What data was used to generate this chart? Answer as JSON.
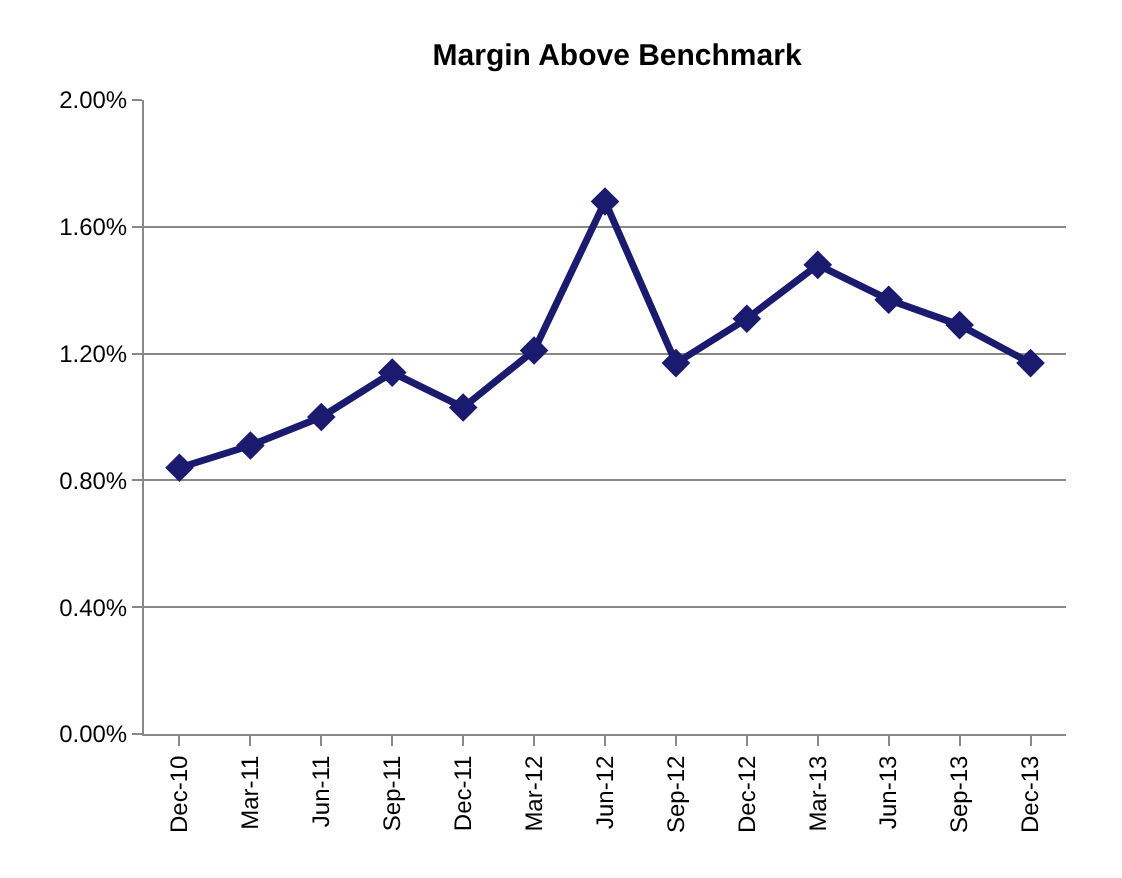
{
  "chart_data": {
    "type": "line",
    "title": "Margin Above Benchmark",
    "categories": [
      "Dec-10",
      "Mar-11",
      "Jun-11",
      "Sep-11",
      "Dec-11",
      "Mar-12",
      "Jun-12",
      "Sep-12",
      "Dec-12",
      "Mar-13",
      "Jun-13",
      "Sep-13",
      "Dec-13"
    ],
    "series": [
      {
        "color": "#1a1a6e",
        "values": [
          0.84,
          0.91,
          1.0,
          1.14,
          1.03,
          1.21,
          1.68,
          1.17,
          1.31,
          1.48,
          1.37,
          1.29,
          1.17
        ]
      }
    ],
    "ylim": [
      0,
      2
    ],
    "yticks": [
      {
        "value": 0,
        "label": "0.00%"
      },
      {
        "value": 0.4,
        "label": "0.40%"
      },
      {
        "value": 0.8,
        "label": "0.80%"
      },
      {
        "value": 1.2,
        "label": "1.20%"
      },
      {
        "value": 1.6,
        "label": "1.60%"
      },
      {
        "value": 2,
        "label": "2.00%"
      }
    ],
    "grid": "y",
    "marker": "diamond",
    "line_style": "solid",
    "legend": false
  }
}
